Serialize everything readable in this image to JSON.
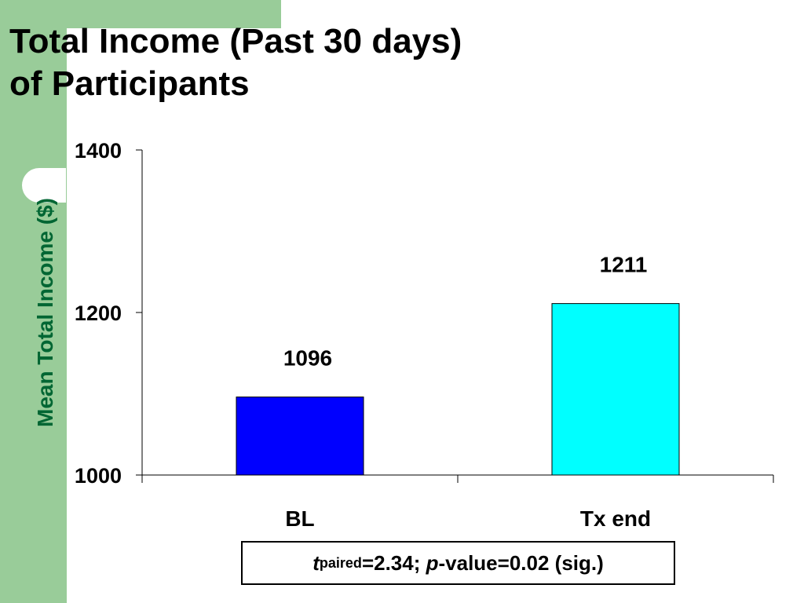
{
  "slide": {
    "title_line1": "Total Income (Past 30 days)",
    "title_line2": "of Participants",
    "accent_color": "#99cc99"
  },
  "stat": {
    "t_symbol": "t",
    "t_subscript": "paired",
    "t_value": "=2.34; ",
    "p_symbol": "p",
    "p_value": "-value=0.02 (sig.)"
  },
  "chart_data": {
    "type": "bar",
    "title": "",
    "xlabel": "",
    "ylabel": "Mean Total Income ($)",
    "ylabel_color": "#006633",
    "categories": [
      "BL",
      "Tx end"
    ],
    "values": [
      1096,
      1211
    ],
    "data_labels": [
      "1096",
      "1211"
    ],
    "bar_colors": [
      "#0000ff",
      "#00ffff"
    ],
    "ylim": [
      1000,
      1400
    ],
    "yticks": [
      1000,
      1200,
      1400
    ],
    "ytick_labels": [
      "1000",
      "1200",
      "1400"
    ],
    "grid": false,
    "legend": "none"
  }
}
